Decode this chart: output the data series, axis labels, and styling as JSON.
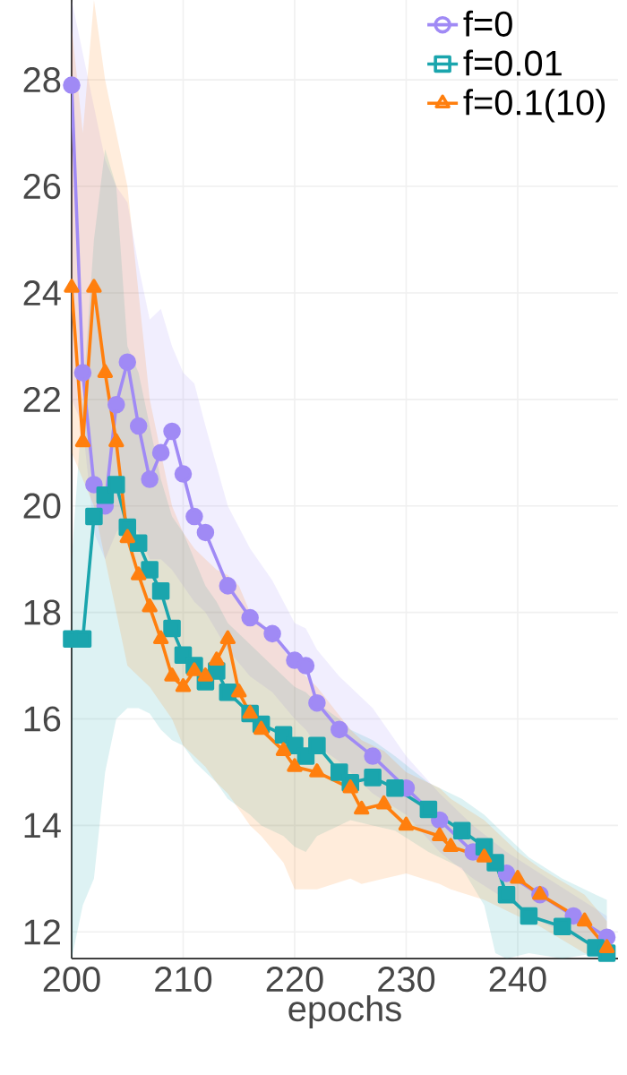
{
  "chart_data": {
    "type": "line",
    "xlabel": "epochs",
    "xlim": [
      200,
      249
    ],
    "ylim": [
      11.5,
      29.5
    ],
    "xticks": [
      200,
      210,
      220,
      230,
      240
    ],
    "yticks": [
      12,
      14,
      16,
      18,
      20,
      22,
      24,
      26,
      28
    ],
    "grid": true,
    "legend": "top right",
    "series": [
      {
        "name": "f=0",
        "color": "#a08af5",
        "marker": "circle",
        "x": [
          200,
          201,
          202,
          203,
          204,
          205,
          206,
          207,
          208,
          209,
          210,
          211,
          212,
          214,
          216,
          218,
          220,
          221,
          222,
          224,
          227,
          230,
          233,
          236,
          239,
          242,
          245,
          248
        ],
        "values": [
          27.9,
          22.5,
          20.4,
          20.0,
          21.9,
          22.7,
          21.5,
          20.5,
          21.0,
          21.4,
          20.6,
          19.8,
          19.5,
          18.5,
          17.9,
          17.6,
          17.1,
          17.0,
          16.3,
          15.8,
          15.3,
          14.7,
          14.1,
          13.5,
          13.1,
          12.7,
          12.3,
          11.9
        ],
        "lower": [
          22.0,
          21.5,
          19.5,
          19.0,
          19.5,
          19.8,
          19.5,
          19.0,
          19.0,
          18.8,
          18.5,
          18.2,
          18.0,
          17.3,
          16.8,
          16.5,
          16.0,
          15.8,
          15.5,
          15.2,
          14.6,
          14.2,
          13.5,
          13.0,
          12.6,
          12.2,
          11.9,
          11.6
        ],
        "upper": [
          29.5,
          28.5,
          27.5,
          26.5,
          26.0,
          25.7,
          24.5,
          23.5,
          23.7,
          23.0,
          22.5,
          22.3,
          21.5,
          20.0,
          19.2,
          18.6,
          17.8,
          17.7,
          17.3,
          16.8,
          16.2,
          15.3,
          14.6,
          14.0,
          13.5,
          13.1,
          12.7,
          12.3
        ]
      },
      {
        "name": "f=0.01",
        "color": "#1aa5ad",
        "marker": "square",
        "x": [
          200,
          201,
          202,
          203,
          204,
          205,
          206,
          207,
          208,
          209,
          210,
          211,
          212,
          213,
          214,
          216,
          217,
          219,
          220,
          221,
          222,
          224,
          225,
          227,
          229,
          232,
          235,
          237,
          238,
          239,
          241,
          244,
          247,
          248
        ],
        "values": [
          17.5,
          17.5,
          19.8,
          20.2,
          20.4,
          19.6,
          19.3,
          18.8,
          18.4,
          17.7,
          17.2,
          17.0,
          16.7,
          16.9,
          16.5,
          16.1,
          15.9,
          15.7,
          15.5,
          15.3,
          15.5,
          15.0,
          14.8,
          14.9,
          14.7,
          14.3,
          13.9,
          13.6,
          13.3,
          12.7,
          12.3,
          12.1,
          11.7,
          11.6
        ],
        "lower": [
          11.5,
          12.5,
          13.0,
          15.0,
          16.0,
          16.2,
          16.2,
          16.1,
          15.8,
          15.6,
          15.5,
          15.2,
          15.0,
          14.8,
          14.5,
          14.2,
          14.0,
          13.8,
          13.6,
          13.5,
          13.8,
          14.0,
          14.1,
          14.0,
          13.9,
          13.5,
          13.2,
          12.5,
          11.6,
          11.5,
          11.6,
          11.5,
          11.6,
          11.5
        ],
        "upper": [
          19.0,
          22.0,
          25.0,
          26.7,
          26.0,
          23.0,
          22.5,
          21.5,
          20.5,
          19.8,
          19.5,
          19.0,
          18.5,
          18.2,
          17.8,
          17.4,
          17.2,
          16.8,
          16.6,
          16.5,
          16.3,
          16.0,
          15.8,
          15.6,
          15.3,
          14.8,
          14.5,
          14.2,
          14.0,
          13.8,
          13.4,
          13.0,
          12.7,
          12.6
        ]
      },
      {
        "name": "f=0.1(10)",
        "color": "#ff7f0e",
        "marker": "triangle",
        "x": [
          200,
          201,
          202,
          203,
          204,
          205,
          206,
          207,
          208,
          209,
          210,
          211,
          212,
          213,
          214,
          215,
          216,
          217,
          219,
          220,
          222,
          225,
          226,
          228,
          230,
          233,
          234,
          237,
          240,
          242,
          246,
          248
        ],
        "values": [
          24.1,
          21.2,
          24.1,
          22.5,
          21.2,
          19.4,
          18.7,
          18.1,
          17.5,
          16.8,
          16.6,
          16.9,
          16.8,
          17.1,
          17.5,
          16.5,
          16.1,
          15.8,
          15.4,
          15.1,
          15.0,
          14.7,
          14.3,
          14.4,
          14.0,
          13.8,
          13.6,
          13.4,
          13.0,
          12.7,
          12.2,
          11.7
        ],
        "lower": [
          21.0,
          20.5,
          20.0,
          19.0,
          18.0,
          17.0,
          16.8,
          16.6,
          16.3,
          16.0,
          15.5,
          15.3,
          15.1,
          14.8,
          14.6,
          14.3,
          14.0,
          13.8,
          13.3,
          12.8,
          12.8,
          13.0,
          12.9,
          13.0,
          13.1,
          12.9,
          12.8,
          12.6,
          12.3,
          12.1,
          11.6,
          11.5
        ],
        "upper": [
          29.0,
          27.0,
          29.5,
          28.0,
          27.0,
          26.0,
          24.0,
          22.0,
          21.0,
          20.0,
          19.5,
          19.2,
          19.0,
          18.8,
          18.7,
          18.5,
          18.0,
          17.8,
          17.3,
          17.0,
          16.6,
          15.8,
          15.6,
          15.4,
          15.0,
          14.7,
          14.5,
          14.1,
          13.5,
          13.2,
          12.7,
          12.2
        ]
      }
    ]
  }
}
